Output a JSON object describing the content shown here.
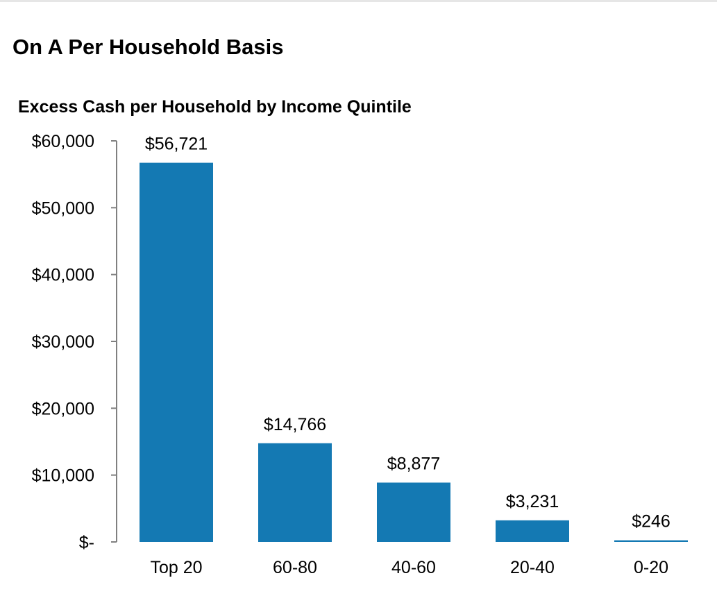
{
  "page": {
    "title": "On A Per Household Basis"
  },
  "chart_data": {
    "type": "bar",
    "title": "Excess Cash per Household by Income Quintile",
    "xlabel": "",
    "ylabel": "",
    "categories": [
      "Top 20",
      "60-80",
      "40-60",
      "20-40",
      "0-20"
    ],
    "values": [
      56721,
      14766,
      8877,
      3231,
      246
    ],
    "data_labels": [
      "$56,721",
      "$14,766",
      "$8,877",
      "$3,231",
      "$246"
    ],
    "ylim": [
      0,
      60000
    ],
    "y_ticks": [
      0,
      10000,
      20000,
      30000,
      40000,
      50000,
      60000
    ],
    "y_tick_labels": [
      "$-",
      "$10,000",
      "$20,000",
      "$30,000",
      "$40,000",
      "$50,000",
      "$60,000"
    ],
    "bar_color": "#1479b3",
    "grid": false,
    "legend": "none"
  }
}
